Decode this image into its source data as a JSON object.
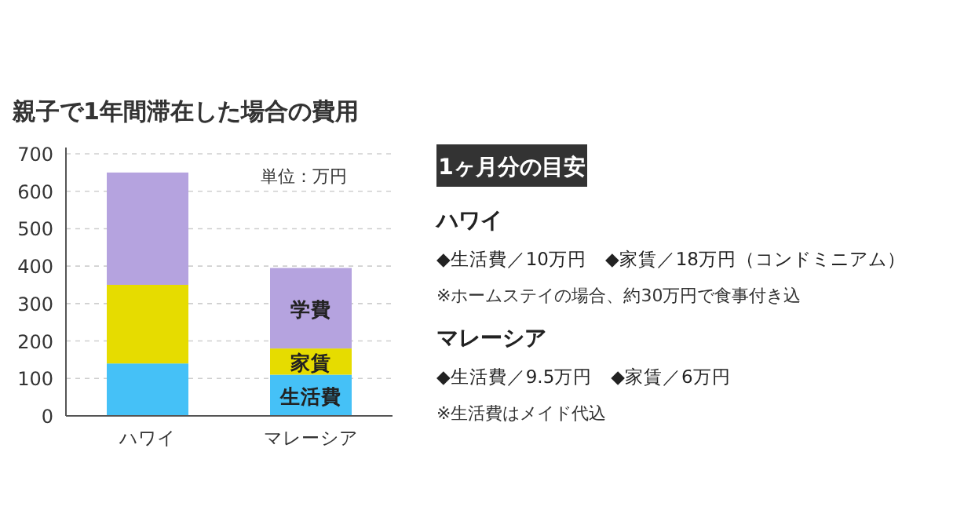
{
  "chart_data": [
    {
      "type": "bar",
      "title": "親子で1年間滞在した場合の費用",
      "stacked": true,
      "categories": [
        "ハワイ",
        "マレーシア"
      ],
      "series": [
        {
          "name": "生活費",
          "color": "#45c1f7",
          "values": [
            140,
            110
          ]
        },
        {
          "name": "家賃",
          "color": "#e6dc00",
          "values": [
            210,
            70
          ]
        },
        {
          "name": "学費",
          "color": "#b5a3df",
          "values": [
            300,
            215
          ]
        }
      ],
      "ylim": [
        0,
        700
      ],
      "yticks": [
        0,
        100,
        200,
        300,
        400,
        500,
        600,
        700
      ],
      "grid": "y",
      "annotations": [
        "単位：万円"
      ]
    },
    {
      "type": "other",
      "title": "1ヶ月分の目安",
      "annotations": [
        "ハワイ",
        "◆生活費／10万円　◆家賃／18万円（コンドミニアム）",
        "※ホームステイの場合、約30万円で食事付き込",
        "マレーシア",
        "◆生活費／9.5万円　◆家賃／6万円",
        "※生活費はメイド代込"
      ]
    }
  ]
}
